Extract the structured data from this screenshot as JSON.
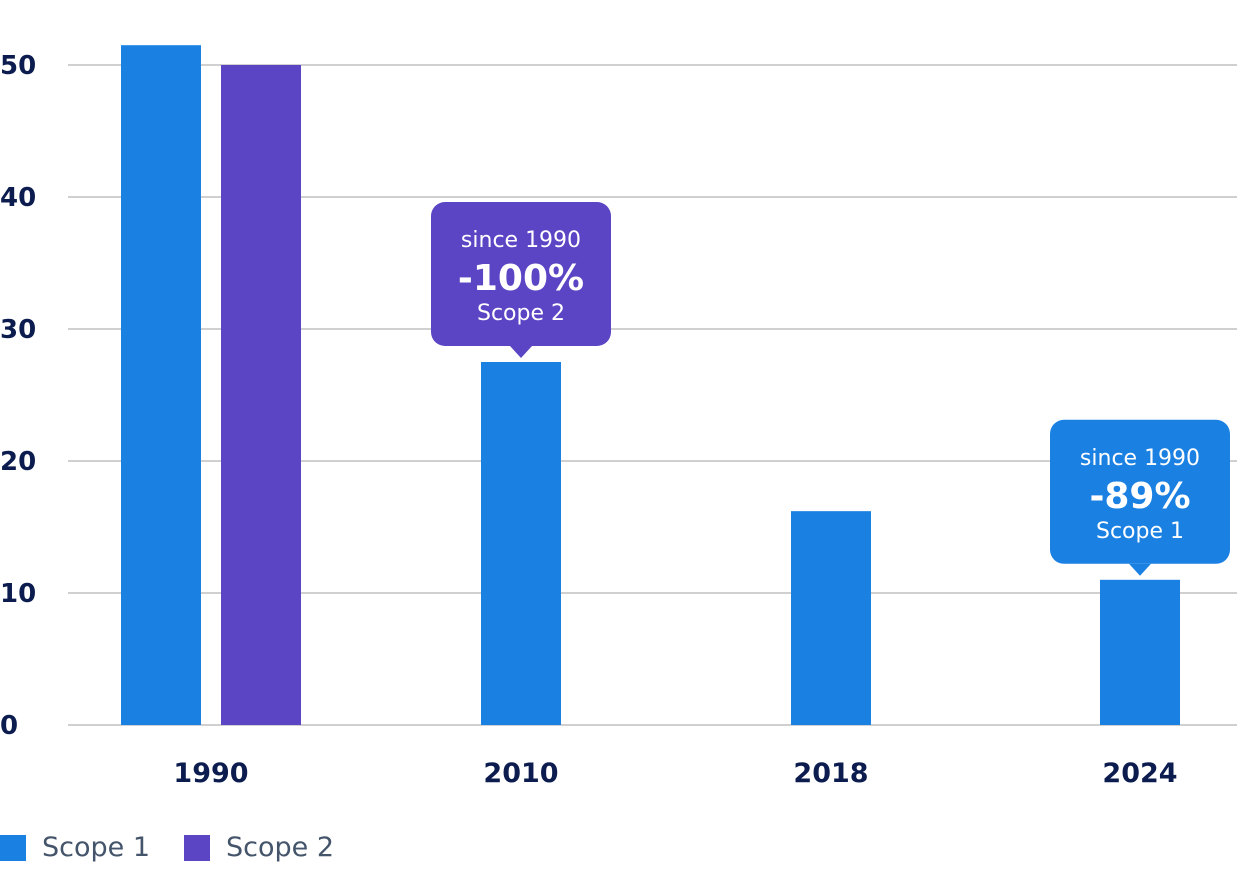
{
  "chart_data": {
    "type": "bar",
    "categories": [
      "1990",
      "2010",
      "2018",
      "2024"
    ],
    "series": [
      {
        "name": "Scope 1",
        "color": "#1a81e3",
        "values": [
          51.5,
          27.5,
          16.2,
          11.0
        ]
      },
      {
        "name": "Scope 2",
        "color": "#5b45c5",
        "values": [
          50.0,
          0,
          0,
          0
        ]
      }
    ],
    "yticks": [
      "0",
      "10",
      "20",
      "30",
      "40",
      "50"
    ],
    "ylim": [
      0,
      50
    ],
    "grid": true,
    "legend_position": "bottom-left",
    "annotations": [
      {
        "category": "2010",
        "series": "Scope 2",
        "line1": "since 1990",
        "value": "-100%",
        "line3": "Scope 2",
        "color": "#5b45c5"
      },
      {
        "category": "2024",
        "series": "Scope 1",
        "line1": "since 1990",
        "value": "-89%",
        "line3": "Scope 1",
        "color": "#1a81e3"
      }
    ]
  },
  "legend": [
    {
      "label": "Scope 1",
      "color": "#1a81e3"
    },
    {
      "label": "Scope 2",
      "color": "#5b45c5"
    }
  ]
}
